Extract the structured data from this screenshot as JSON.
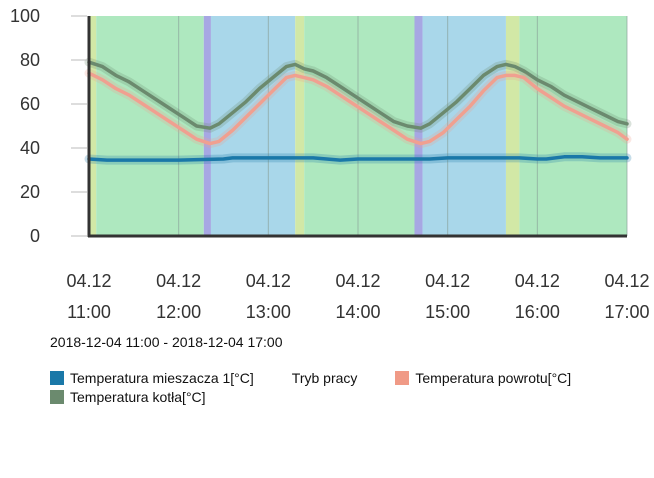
{
  "chart_data": {
    "type": "line",
    "title": "",
    "xlabel": "",
    "ylabel": "",
    "ylim": [
      0,
      100
    ],
    "y_ticks": [
      "0",
      "20",
      "40",
      "60",
      "80",
      "100"
    ],
    "x_hours": [
      11,
      17
    ],
    "x_ticks": [
      {
        "date": "04.12",
        "time": "11:00"
      },
      {
        "date": "04.12",
        "time": "12:00"
      },
      {
        "date": "04.12",
        "time": "13:00"
      },
      {
        "date": "04.12",
        "time": "14:00"
      },
      {
        "date": "04.12",
        "time": "15:00"
      },
      {
        "date": "04.12",
        "time": "16:00"
      },
      {
        "date": "04.12",
        "time": "17:00"
      }
    ],
    "mode_bands": [
      {
        "from": 11.0,
        "to": 11.08,
        "color": "#d2e8a6"
      },
      {
        "from": 11.08,
        "to": 12.28,
        "color": "#aee8bf"
      },
      {
        "from": 12.28,
        "to": 12.36,
        "color": "#a7a7e3"
      },
      {
        "from": 12.36,
        "to": 13.3,
        "color": "#a9d7ea"
      },
      {
        "from": 13.3,
        "to": 13.4,
        "color": "#d2e8a6"
      },
      {
        "from": 13.4,
        "to": 14.63,
        "color": "#aee8bf"
      },
      {
        "from": 14.63,
        "to": 14.72,
        "color": "#a7a7e3"
      },
      {
        "from": 14.72,
        "to": 15.65,
        "color": "#a9d7ea"
      },
      {
        "from": 15.65,
        "to": 15.8,
        "color": "#d2e8a6"
      },
      {
        "from": 15.8,
        "to": 17.0,
        "color": "#aee8bf"
      }
    ],
    "series": [
      {
        "name": "Temperatura kotła[°C]",
        "color": "#6b8a6e",
        "x": [
          11.0,
          11.15,
          11.3,
          11.45,
          11.6,
          11.75,
          11.9,
          12.05,
          12.2,
          12.35,
          12.45,
          12.6,
          12.75,
          12.9,
          13.05,
          13.2,
          13.3,
          13.4,
          13.5,
          13.65,
          13.8,
          13.95,
          14.1,
          14.25,
          14.4,
          14.55,
          14.7,
          14.8,
          14.95,
          15.1,
          15.25,
          15.4,
          15.55,
          15.65,
          15.75,
          15.85,
          16.0,
          16.15,
          16.3,
          16.45,
          16.6,
          16.75,
          16.9,
          17.0
        ],
        "values": [
          79,
          77,
          73,
          70,
          66,
          62,
          58,
          54,
          50,
          49,
          51,
          56,
          61,
          67,
          72,
          77,
          78,
          76,
          75,
          72,
          68,
          64,
          60,
          56,
          52,
          50,
          49,
          51,
          56,
          61,
          67,
          73,
          77,
          78,
          77,
          75,
          71,
          68,
          64,
          61,
          58,
          55,
          52,
          51
        ]
      },
      {
        "name": "Temperatura powrotu[°C]",
        "color": "#f0a090",
        "x": [
          11.0,
          11.15,
          11.3,
          11.45,
          11.6,
          11.75,
          11.9,
          12.05,
          12.2,
          12.35,
          12.45,
          12.6,
          12.75,
          12.9,
          13.05,
          13.2,
          13.3,
          13.4,
          13.5,
          13.65,
          13.8,
          13.95,
          14.1,
          14.25,
          14.4,
          14.55,
          14.7,
          14.8,
          14.95,
          15.1,
          15.25,
          15.4,
          15.55,
          15.65,
          15.75,
          15.85,
          16.0,
          16.15,
          16.3,
          16.45,
          16.6,
          16.75,
          16.9,
          17.0
        ],
        "values": [
          74,
          71,
          67,
          64,
          60,
          56,
          52,
          48,
          44,
          42,
          43,
          48,
          54,
          60,
          66,
          72,
          73,
          72,
          71,
          68,
          64,
          60,
          56,
          52,
          48,
          44,
          42,
          43,
          47,
          53,
          59,
          66,
          72,
          73,
          73,
          72,
          67,
          63,
          59,
          56,
          53,
          50,
          47,
          44
        ]
      },
      {
        "name": "Temperatura mieszacza 1[°C]",
        "color": "#1a78a8",
        "x": [
          11.0,
          11.2,
          11.5,
          12.0,
          12.5,
          12.6,
          13.0,
          13.5,
          13.8,
          14.0,
          14.5,
          14.8,
          15.0,
          15.5,
          15.8,
          16.0,
          16.1,
          16.3,
          16.5,
          16.7,
          17.0
        ],
        "values": [
          35,
          34.5,
          34.5,
          34.5,
          35,
          35.5,
          35.5,
          35.5,
          34.5,
          35,
          35,
          35,
          35.5,
          35.5,
          35.5,
          35,
          35,
          36,
          36,
          35.5,
          35.5
        ]
      }
    ],
    "legend": [
      {
        "label": "Temperatura mieszacza 1[°C]",
        "color": "#1a78a8"
      },
      {
        "label": "Tryb pracy",
        "color": ""
      },
      {
        "label": "Temperatura powrotu[°C]",
        "color": "#f09a86"
      },
      {
        "label": "Temperatura kotła[°C]",
        "color": "#6b8a6e"
      }
    ]
  },
  "range_label": "2018-12-04 11:00 - 2018-12-04 17:00"
}
